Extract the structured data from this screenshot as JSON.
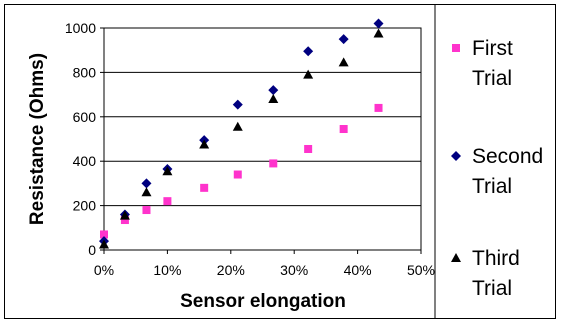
{
  "chart_data": {
    "type": "scatter",
    "title": "",
    "xlabel": "Sensor elongation",
    "ylabel": "Resistance (Ohms)",
    "xlim": [
      0,
      50
    ],
    "ylim": [
      0,
      1000
    ],
    "x_unit": "%",
    "x_ticks": [
      "0%",
      "10%",
      "20%",
      "30%",
      "40%",
      "50%"
    ],
    "y_ticks": [
      "0",
      "200",
      "400",
      "600",
      "800",
      "1000"
    ],
    "grid": "horizontal",
    "legend_position": "right",
    "series": [
      {
        "name": "First Trial",
        "name_lines": [
          "First",
          "Trial"
        ],
        "marker": "square",
        "color": "#ff33cc",
        "points": [
          [
            0,
            70
          ],
          [
            3.3,
            135
          ],
          [
            6.7,
            180
          ],
          [
            10,
            220
          ],
          [
            15.8,
            280
          ],
          [
            21.1,
            340
          ],
          [
            26.7,
            390
          ],
          [
            32.2,
            455
          ],
          [
            37.8,
            545
          ],
          [
            43.3,
            640
          ]
        ]
      },
      {
        "name": "Second Trial",
        "name_lines": [
          "Second",
          "Trial"
        ],
        "marker": "diamond",
        "color": "#000080",
        "points": [
          [
            0,
            40
          ],
          [
            3.3,
            160
          ],
          [
            6.7,
            300
          ],
          [
            10,
            365
          ],
          [
            15.8,
            495
          ],
          [
            21.1,
            655
          ],
          [
            26.7,
            720
          ],
          [
            32.2,
            895
          ],
          [
            37.8,
            950
          ],
          [
            43.3,
            1020
          ]
        ]
      },
      {
        "name": "Third Trial",
        "name_lines": [
          "Third",
          "Trial"
        ],
        "marker": "triangle",
        "color": "#000000",
        "points": [
          [
            0,
            25
          ],
          [
            3.3,
            155
          ],
          [
            6.7,
            260
          ],
          [
            10,
            355
          ],
          [
            15.8,
            475
          ],
          [
            21.1,
            555
          ],
          [
            26.7,
            680
          ],
          [
            32.2,
            790
          ],
          [
            37.8,
            845
          ],
          [
            43.3,
            975
          ]
        ]
      }
    ]
  }
}
